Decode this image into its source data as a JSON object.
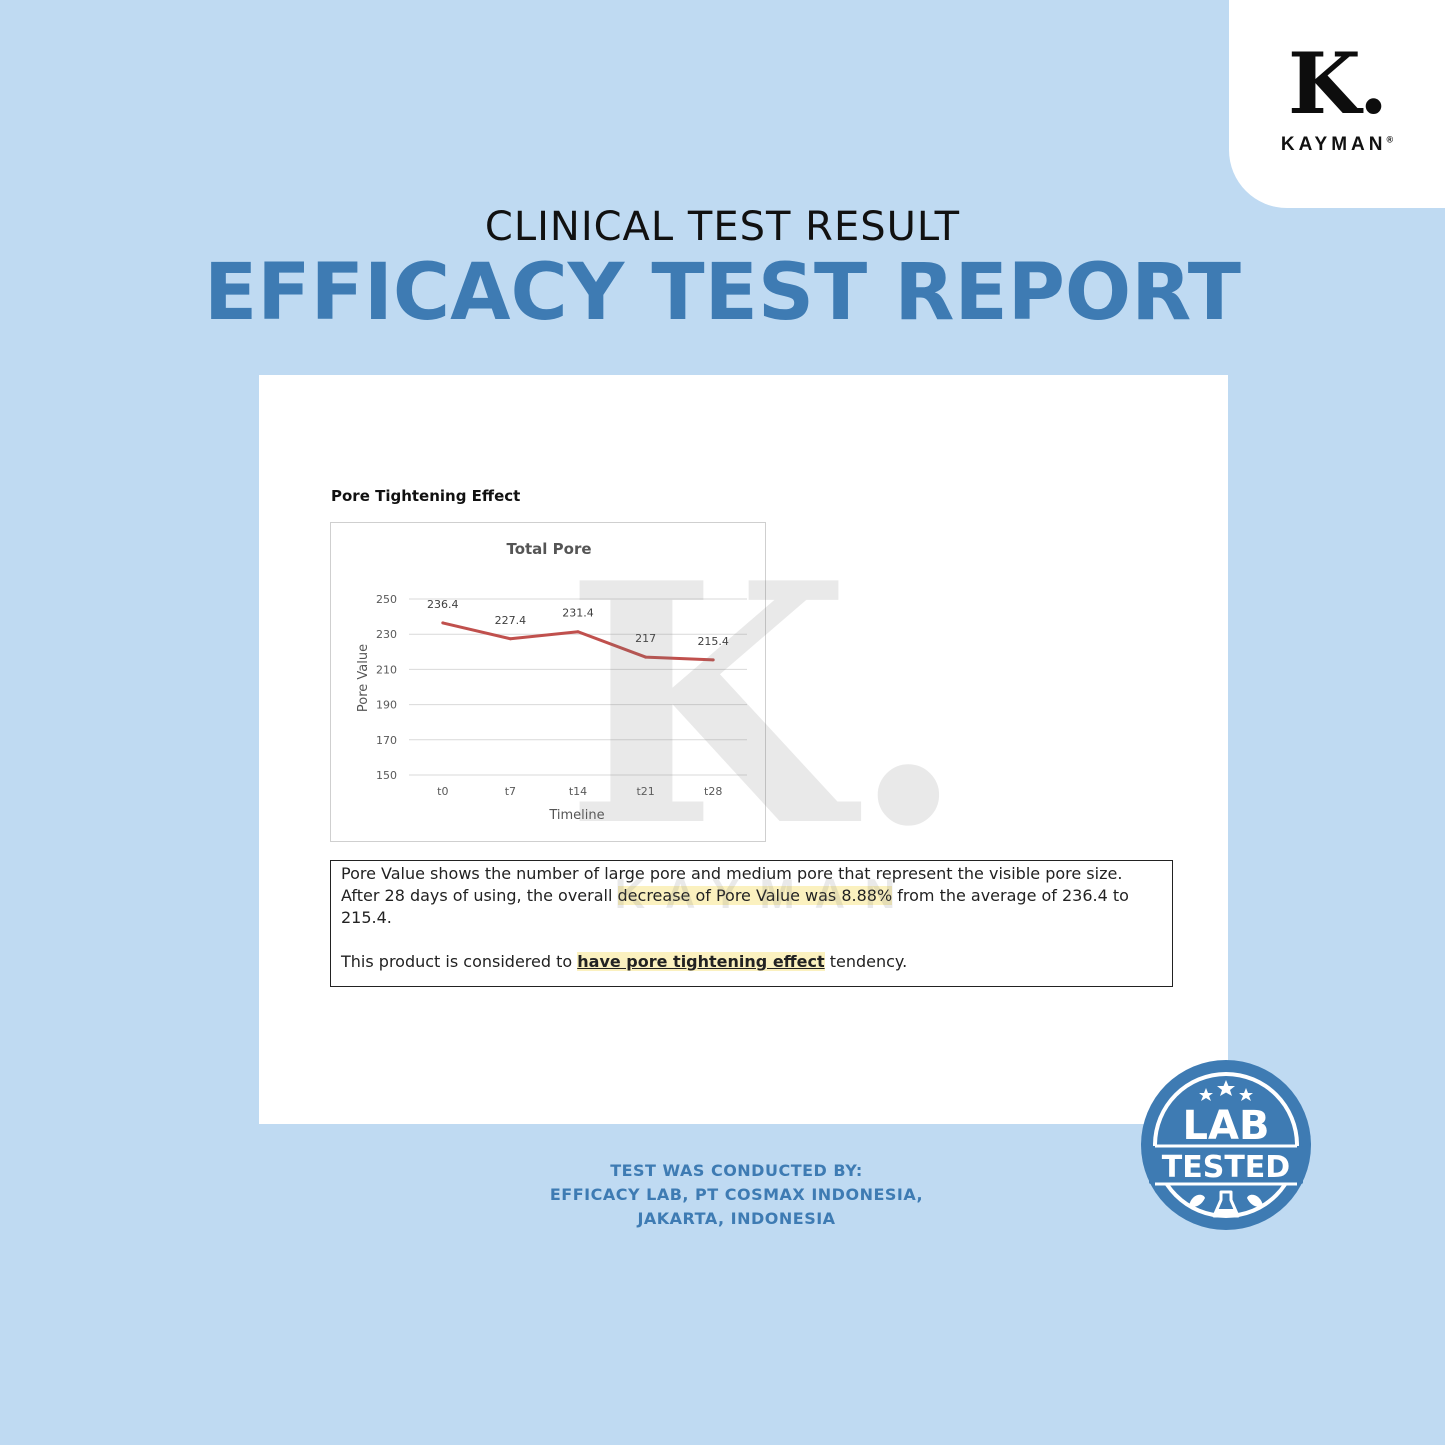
{
  "brand": {
    "logo_letter": "K.",
    "logo_word": "KAYMAN",
    "registered_mark": "®"
  },
  "heading": {
    "subtitle": "CLINICAL TEST RESULT",
    "title": "EFFICACY TEST REPORT"
  },
  "document": {
    "section_title": "Pore Tightening Effect",
    "note_segments": {
      "p1_a": "Pore Value shows the number of large pore and medium pore that represent the visible pore size. After 28 days of using, the overall ",
      "p1_highlight": "decrease of Pore Value was 8.88%",
      "p1_b": " from the average of 236.4 to 215.4.",
      "p2_a": "This product is considered to ",
      "p2_highlight": "have pore tightening effect",
      "p2_b": " tendency."
    }
  },
  "chart_data": {
    "type": "line",
    "title": "Total Pore",
    "xlabel": "Timeline",
    "ylabel": "Pore Value",
    "categories": [
      "t0",
      "t7",
      "t14",
      "t21",
      "t28"
    ],
    "series": [
      {
        "values": [
          236.4,
          227.4,
          231.4,
          217,
          215.4
        ],
        "color": "#c0504d"
      }
    ],
    "data_labels": [
      "236.4",
      "227.4",
      "231.4",
      "217",
      "215.4"
    ],
    "yticks": [
      150,
      170,
      190,
      210,
      230,
      250
    ],
    "ylim": [
      150,
      250
    ],
    "grid": true,
    "legend": "none"
  },
  "footer": {
    "line1": "TEST WAS CONDUCTED BY:",
    "line2": "EFFICACY LAB, PT COSMAX INDONESIA,",
    "line3": "JAKARTA, INDONESIA"
  },
  "badge": {
    "line1": "LAB",
    "line2": "TESTED",
    "icon": "lab-flask-icon"
  },
  "colors": {
    "background": "#bfdaf2",
    "accent": "#3e7bb3",
    "series_line": "#c0504d",
    "highlight": "#fbf1bf"
  }
}
